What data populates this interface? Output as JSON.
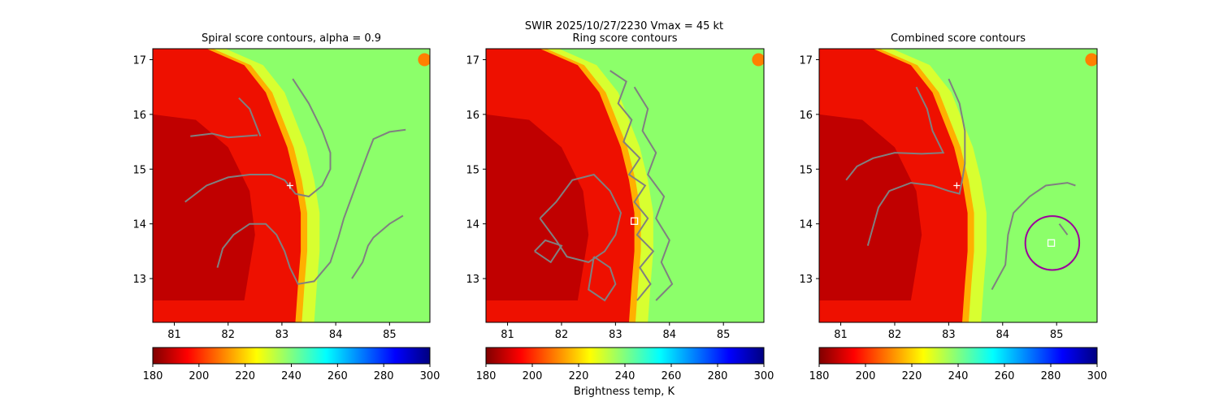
{
  "figure": {
    "suptitle": "SWIR  2025/10/27/2230    Vmax = 45 kt",
    "colorbar_label": "Brightness temp, K"
  },
  "colors": {
    "contour": "#808080",
    "circle": "#9b009b",
    "marker": "#ffffff"
  },
  "chart_data": [
    {
      "type": "heatmap",
      "title": "Spiral score contours, alpha =  0.9",
      "xlim": [
        80.6,
        85.75
      ],
      "ylim": [
        12.2,
        17.2
      ],
      "xticks": [
        81,
        82,
        83,
        84,
        85
      ],
      "yticks": [
        13,
        14,
        15,
        16,
        17
      ],
      "xticklabels": [
        "81",
        "82",
        "83",
        "84",
        "85"
      ],
      "yticklabels": [
        "13",
        "14",
        "15",
        "16",
        "17"
      ],
      "colorbar": {
        "range": [
          180,
          300
        ],
        "ticks": [
          "180",
          "200",
          "220",
          "240",
          "260",
          "280",
          "300"
        ],
        "cmap": "jet",
        "label": ""
      },
      "markers": [
        {
          "type": "plus",
          "lon": 83.15,
          "lat": 14.7
        }
      ],
      "contours": [
        [
          [
            82.2,
            16.3
          ],
          [
            82.4,
            16.1
          ],
          [
            82.6,
            15.6
          ]
        ],
        [
          [
            81.3,
            15.6
          ],
          [
            81.7,
            15.65
          ],
          [
            82.0,
            15.58
          ],
          [
            82.3,
            15.6
          ],
          [
            82.55,
            15.62
          ]
        ],
        [
          [
            83.2,
            16.65
          ],
          [
            83.5,
            16.2
          ],
          [
            83.75,
            15.7
          ],
          [
            83.9,
            15.3
          ],
          [
            83.9,
            15.0
          ],
          [
            83.75,
            14.7
          ],
          [
            83.5,
            14.5
          ],
          [
            83.25,
            14.55
          ],
          [
            83.05,
            14.8
          ],
          [
            82.8,
            14.9
          ],
          [
            82.4,
            14.9
          ],
          [
            82.0,
            14.85
          ],
          [
            81.6,
            14.7
          ],
          [
            81.2,
            14.4
          ]
        ],
        [
          [
            81.8,
            13.2
          ],
          [
            81.9,
            13.55
          ],
          [
            82.1,
            13.8
          ],
          [
            82.4,
            14.0
          ],
          [
            82.7,
            14.0
          ],
          [
            82.9,
            13.8
          ],
          [
            83.05,
            13.5
          ],
          [
            83.15,
            13.2
          ],
          [
            83.3,
            12.9
          ],
          [
            83.6,
            12.95
          ],
          [
            83.9,
            13.3
          ],
          [
            84.05,
            13.75
          ],
          [
            84.15,
            14.1
          ],
          [
            84.3,
            14.5
          ],
          [
            84.45,
            14.9
          ],
          [
            84.6,
            15.3
          ],
          [
            84.7,
            15.55
          ],
          [
            85.0,
            15.68
          ],
          [
            85.3,
            15.72
          ]
        ],
        [
          [
            84.3,
            13.0
          ],
          [
            84.5,
            13.3
          ],
          [
            84.6,
            13.6
          ],
          [
            84.7,
            13.75
          ],
          [
            85.0,
            14.0
          ],
          [
            85.25,
            14.15
          ]
        ]
      ],
      "circle": null
    },
    {
      "type": "heatmap",
      "title": "Ring score contours",
      "xlim": [
        80.6,
        85.75
      ],
      "ylim": [
        12.2,
        17.2
      ],
      "xticks": [
        81,
        82,
        83,
        84,
        85
      ],
      "yticks": [
        13,
        14,
        15,
        16,
        17
      ],
      "xticklabels": [
        "81",
        "82",
        "83",
        "84",
        "85"
      ],
      "yticklabels": [
        "13",
        "14",
        "15",
        "16",
        "17"
      ],
      "colorbar": {
        "range": [
          180,
          300
        ],
        "ticks": [
          "180",
          "200",
          "220",
          "240",
          "260",
          "280",
          "300"
        ],
        "cmap": "jet",
        "label": "Brightness temp, K"
      },
      "markers": [
        {
          "type": "square",
          "lon": 83.35,
          "lat": 14.05
        }
      ],
      "contours": [
        [
          [
            82.9,
            16.8
          ],
          [
            83.2,
            16.6
          ],
          [
            83.05,
            16.2
          ],
          [
            83.3,
            15.9
          ],
          [
            83.15,
            15.5
          ],
          [
            83.45,
            15.2
          ],
          [
            83.25,
            14.9
          ],
          [
            83.55,
            14.7
          ],
          [
            83.35,
            14.4
          ],
          [
            83.6,
            14.1
          ],
          [
            83.4,
            13.8
          ],
          [
            83.7,
            13.5
          ],
          [
            83.45,
            13.2
          ],
          [
            83.65,
            12.9
          ],
          [
            83.4,
            12.6
          ]
        ],
        [
          [
            83.35,
            16.5
          ],
          [
            83.6,
            16.1
          ],
          [
            83.5,
            15.7
          ],
          [
            83.75,
            15.3
          ],
          [
            83.6,
            14.9
          ],
          [
            83.9,
            14.5
          ],
          [
            83.75,
            14.1
          ],
          [
            84.0,
            13.7
          ],
          [
            83.85,
            13.3
          ],
          [
            84.05,
            12.9
          ],
          [
            83.75,
            12.6
          ]
        ],
        [
          [
            81.6,
            14.1
          ],
          [
            81.9,
            14.4
          ],
          [
            82.2,
            14.8
          ],
          [
            82.6,
            14.9
          ],
          [
            82.9,
            14.6
          ],
          [
            83.1,
            14.2
          ],
          [
            83.0,
            13.8
          ],
          [
            82.8,
            13.5
          ],
          [
            82.5,
            13.3
          ],
          [
            82.1,
            13.4
          ],
          [
            81.9,
            13.7
          ],
          [
            81.6,
            14.1
          ]
        ],
        [
          [
            82.6,
            13.4
          ],
          [
            82.9,
            13.2
          ],
          [
            83.0,
            12.9
          ],
          [
            82.8,
            12.6
          ],
          [
            82.5,
            12.8
          ],
          [
            82.6,
            13.4
          ]
        ],
        [
          [
            81.5,
            13.5
          ],
          [
            81.8,
            13.3
          ],
          [
            82.0,
            13.6
          ],
          [
            81.7,
            13.7
          ],
          [
            81.5,
            13.5
          ]
        ]
      ],
      "circle": null
    },
    {
      "type": "heatmap",
      "title": "Combined score contours",
      "xlim": [
        80.6,
        85.75
      ],
      "ylim": [
        12.2,
        17.2
      ],
      "xticks": [
        81,
        82,
        83,
        84,
        85
      ],
      "yticks": [
        13,
        14,
        15,
        16,
        17
      ],
      "xticklabels": [
        "81",
        "82",
        "83",
        "84",
        "85"
      ],
      "yticklabels": [
        "13",
        "14",
        "15",
        "16",
        "17"
      ],
      "colorbar": {
        "range": [
          180,
          300
        ],
        "ticks": [
          "180",
          "200",
          "220",
          "240",
          "260",
          "280",
          "300"
        ],
        "cmap": "jet",
        "label": ""
      },
      "markers": [
        {
          "type": "plus",
          "lon": 83.15,
          "lat": 14.7
        },
        {
          "type": "square",
          "lon": 84.9,
          "lat": 13.65
        }
      ],
      "contours": [
        [
          [
            82.4,
            16.5
          ],
          [
            82.6,
            16.1
          ],
          [
            82.7,
            15.7
          ],
          [
            82.9,
            15.3
          ],
          [
            82.5,
            15.28
          ],
          [
            82.0,
            15.3
          ],
          [
            81.6,
            15.2
          ],
          [
            81.3,
            15.05
          ],
          [
            81.1,
            14.8
          ]
        ],
        [
          [
            83.0,
            16.65
          ],
          [
            83.2,
            16.2
          ],
          [
            83.3,
            15.7
          ],
          [
            83.3,
            15.1
          ],
          [
            83.25,
            14.8
          ],
          [
            83.2,
            14.55
          ],
          [
            83.0,
            14.6
          ],
          [
            82.7,
            14.7
          ],
          [
            82.3,
            14.75
          ],
          [
            81.9,
            14.6
          ],
          [
            81.7,
            14.3
          ],
          [
            81.5,
            13.6
          ]
        ],
        [
          [
            83.8,
            12.8
          ],
          [
            84.05,
            13.25
          ],
          [
            84.1,
            13.8
          ],
          [
            84.2,
            14.2
          ],
          [
            84.5,
            14.5
          ],
          [
            84.8,
            14.7
          ],
          [
            85.2,
            14.75
          ],
          [
            85.35,
            14.7
          ]
        ],
        [
          [
            85.05,
            14.0
          ],
          [
            85.2,
            13.8
          ]
        ]
      ],
      "circle": {
        "lon": 84.92,
        "lat": 13.65,
        "r_deg": 0.5
      }
    }
  ]
}
